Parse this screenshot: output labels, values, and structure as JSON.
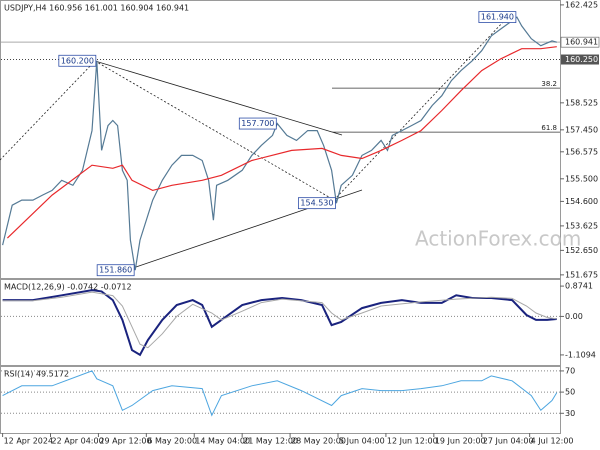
{
  "chart_data": [
    {
      "type": "line",
      "title": "USDJPY,H4 160.956 161.001 160.904 160.941",
      "watermark": "ActionForex.com",
      "xlim": [
        -1,
        349
      ],
      "ylim": [
        151.55,
        162.58
      ],
      "yticks": [
        162.425,
        158.525,
        {
          "value": 157.45,
          "label": "157.450"
        },
        156.575,
        {
          "value": 155.5,
          "label": "155.500"
        },
        {
          "value": 154.6,
          "label": "154.600"
        },
        153.625,
        {
          "value": 152.65,
          "label": "152.650"
        },
        151.675
      ],
      "current_price": 160.941,
      "marked_level": {
        "value": 160.25,
        "label": "160.250"
      },
      "levels": [
        {
          "value": 159.11,
          "label": "38.2"
        },
        {
          "value": 157.36,
          "label": "61.8"
        }
      ],
      "annotations": [
        {
          "x": 59,
          "value": 160.2,
          "label": "160.200"
        },
        {
          "x": 172,
          "value": 157.7,
          "label": "157.700"
        },
        {
          "x": 209,
          "value": 154.53,
          "label": "154.530"
        },
        {
          "x": 83,
          "value": 151.86,
          "label": "151.860"
        },
        {
          "x": 322,
          "value": 161.94,
          "label": "161.940"
        }
      ],
      "series": [
        {
          "color": "#557a95",
          "width": 1.2,
          "x": [
            0,
            6,
            12,
            19,
            25,
            31,
            37,
            44,
            50,
            56,
            59,
            62,
            66,
            69,
            72,
            75,
            78,
            80,
            83,
            86,
            91,
            94,
            100,
            106,
            112,
            119,
            125,
            129,
            132,
            134,
            141,
            150,
            156,
            162,
            169,
            172,
            178,
            184,
            191,
            197,
            201,
            206,
            209,
            212,
            219,
            225,
            231,
            237,
            241,
            244,
            250,
            256,
            262,
            269,
            275,
            281,
            287,
            294,
            300,
            306,
            312,
            319,
            322,
            325,
            331,
            337,
            344,
            347
          ],
          "values": [
            152.86,
            154.45,
            154.65,
            154.65,
            154.85,
            155.04,
            155.44,
            155.24,
            155.84,
            157.42,
            160.2,
            156.63,
            157.62,
            157.82,
            157.62,
            155.84,
            155.44,
            153.06,
            151.86,
            153.06,
            154.05,
            154.65,
            155.44,
            156.04,
            156.43,
            156.43,
            156.23,
            155.44,
            153.85,
            155.24,
            155.44,
            155.84,
            156.43,
            156.83,
            157.23,
            157.7,
            157.23,
            157.03,
            157.42,
            157.42,
            156.83,
            155.84,
            154.53,
            155.24,
            155.64,
            156.43,
            156.63,
            157.03,
            156.63,
            157.23,
            157.42,
            157.62,
            157.82,
            158.42,
            158.81,
            159.41,
            159.81,
            160.2,
            160.6,
            161.19,
            161.47,
            161.79,
            161.94,
            161.59,
            161.08,
            160.8,
            160.99,
            160.941
          ]
        },
        {
          "color": "#e8292c",
          "width": 1.2,
          "x": [
            3,
            31,
            56,
            69,
            75,
            81,
            94,
            106,
            125,
            137,
            156,
            181,
            200,
            212,
            225,
            237,
            250,
            262,
            275,
            287,
            300,
            312,
            325,
            337,
            347
          ],
          "values": [
            153.14,
            154.85,
            156.04,
            155.92,
            156.04,
            155.44,
            155.04,
            155.24,
            155.44,
            155.64,
            156.23,
            156.63,
            156.71,
            156.43,
            156.31,
            156.63,
            157.03,
            157.42,
            158.22,
            159.01,
            159.81,
            160.28,
            160.68,
            160.68,
            160.76
          ]
        }
      ]
    },
    {
      "type": "line",
      "title": "MACD(12,26,9) -0.0742 -0.0712",
      "xlim": [
        -1,
        349
      ],
      "ylim": [
        -1.4,
        1.05
      ],
      "yticks": [
        0.8741,
        {
          "value": 0,
          "label": "0.00"
        },
        -1.1094
      ],
      "zero_line": true,
      "series": [
        {
          "color": "#1a237e",
          "width": 2,
          "x": [
            0,
            19,
            37,
            56,
            62,
            69,
            75,
            81,
            86,
            91,
            100,
            109,
            119,
            125,
            131,
            137,
            150,
            162,
            175,
            187,
            200,
            206,
            212,
            225,
            237,
            250,
            262,
            275,
            284,
            294,
            306,
            319,
            328,
            334,
            341,
            347
          ],
          "values": [
            0.47,
            0.47,
            0.61,
            0.76,
            0.72,
            0.47,
            -0.1,
            -0.97,
            -1.11,
            -0.68,
            -0.1,
            0.33,
            0.47,
            0.33,
            -0.3,
            -0.1,
            0.33,
            0.47,
            0.53,
            0.47,
            0.33,
            -0.25,
            -0.16,
            0.24,
            0.39,
            0.47,
            0.39,
            0.39,
            0.61,
            0.53,
            0.53,
            0.47,
            0.04,
            -0.1,
            -0.1,
            -0.0742
          ]
        },
        {
          "color": "#a8a8a8",
          "width": 1,
          "x": [
            0,
            19,
            37,
            56,
            69,
            75,
            81,
            86,
            91,
            100,
            109,
            119,
            131,
            137,
            150,
            162,
            175,
            200,
            206,
            212,
            225,
            237,
            262,
            284,
            306,
            319,
            328,
            334,
            341,
            347
          ],
          "values": [
            0.45,
            0.45,
            0.55,
            0.7,
            0.6,
            0.3,
            -0.3,
            -0.8,
            -0.9,
            -0.5,
            0,
            0.35,
            0.1,
            -0.1,
            0.15,
            0.4,
            0.5,
            0.4,
            0.1,
            -0.1,
            0.1,
            0.3,
            0.42,
            0.5,
            0.55,
            0.52,
            0.3,
            0.1,
            -0.03,
            -0.0712
          ]
        }
      ]
    },
    {
      "type": "line",
      "title": "RSI(14) 49.5172",
      "xlim": [
        -1,
        349
      ],
      "ylim": [
        11.4,
        73.7
      ],
      "yticks": [
        70,
        50,
        30
      ],
      "grid": true,
      "xticks": [
        {
          "value": 0,
          "label": "12 Apr 2024"
        },
        {
          "value": 30,
          "label": "22 Apr 04:00"
        },
        {
          "value": 60,
          "label": "29 Apr 12:00"
        },
        {
          "value": 90,
          "label": "6 May 20:00"
        },
        {
          "value": 120,
          "label": "14 May 04:00"
        },
        {
          "value": 150,
          "label": "21 May 12:00"
        },
        {
          "value": 180,
          "label": "28 May 20:00"
        },
        {
          "value": 210,
          "label": "5 Jun 04:00"
        },
        {
          "value": 240,
          "label": "12 Jun 12:00"
        },
        {
          "value": 270,
          "label": "19 Jun 20:00"
        },
        {
          "value": 300,
          "label": "27 Jun 04:00"
        },
        {
          "value": 330,
          "label": "4 Jul 12:00"
        }
      ],
      "series": [
        {
          "color": "#4da6e0",
          "width": 1,
          "x": [
            0,
            12,
            31,
            56,
            59,
            69,
            75,
            81,
            94,
            106,
            125,
            131,
            137,
            156,
            172,
            187,
            206,
            212,
            225,
            237,
            250,
            262,
            275,
            287,
            300,
            306,
            319,
            331,
            337,
            344,
            347
          ],
          "values": [
            46.7,
            56,
            56,
            70,
            62.6,
            56,
            32.8,
            37.4,
            51.4,
            56,
            53.3,
            28.1,
            46.7,
            56,
            60.7,
            51.4,
            37.4,
            46.7,
            53.3,
            51.4,
            51.4,
            53.3,
            56,
            60.7,
            60.7,
            65.3,
            60.7,
            46.7,
            32.8,
            42.1,
            49.5172
          ]
        }
      ]
    }
  ]
}
